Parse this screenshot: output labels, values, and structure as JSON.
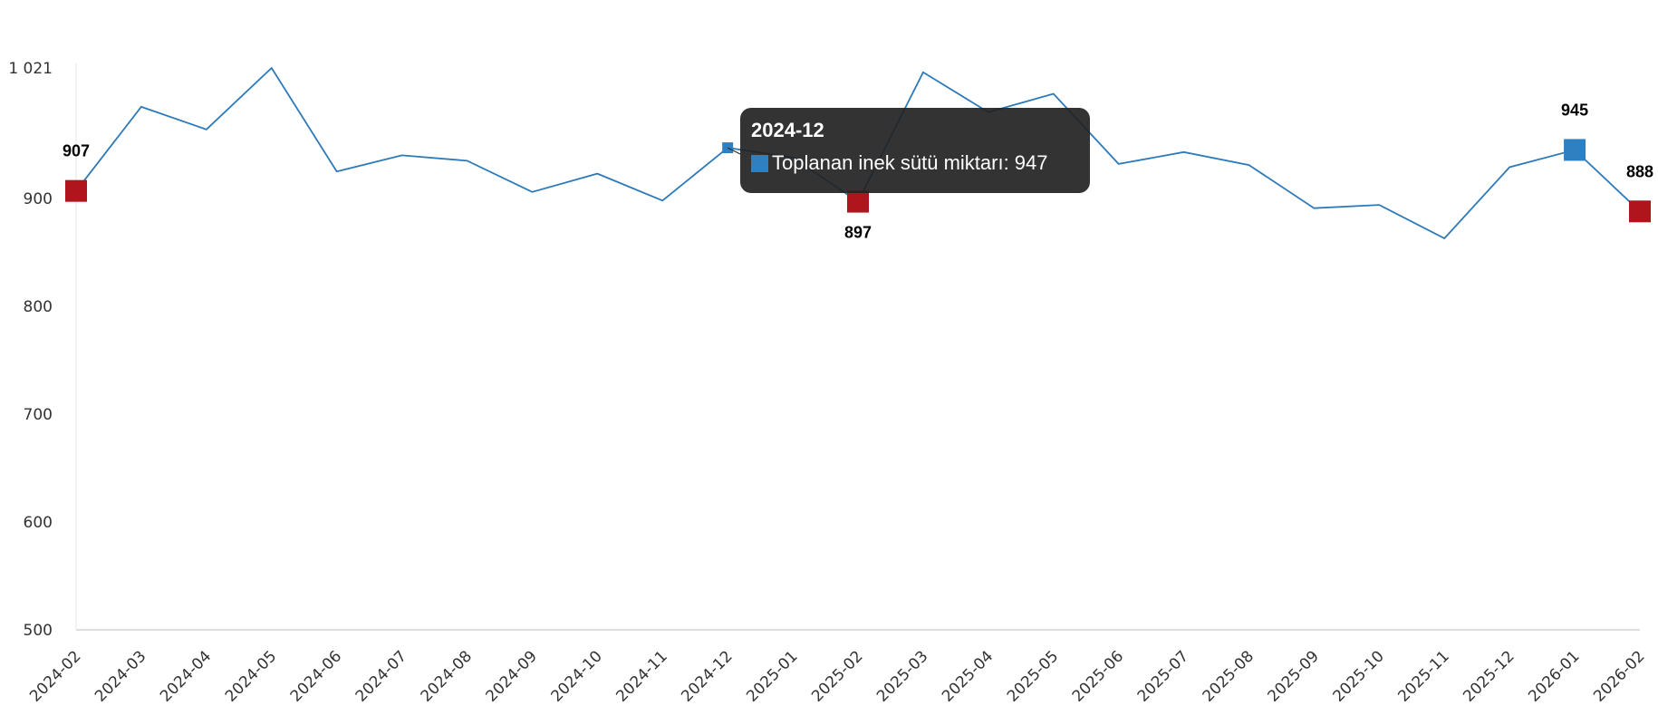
{
  "chart_data": {
    "type": "line",
    "title": "",
    "xlabel": "",
    "ylabel": "",
    "ylim": [
      500,
      1021
    ],
    "y_ticks": [
      "500",
      "600",
      "700",
      "800",
      "900",
      "1 021"
    ],
    "y_tick_values": [
      500,
      600,
      700,
      800,
      900,
      1021
    ],
    "categories": [
      "2024-02",
      "2024-03",
      "2024-04",
      "2024-05",
      "2024-06",
      "2024-07",
      "2024-08",
      "2024-09",
      "2024-10",
      "2024-11",
      "2024-12",
      "2025-01",
      "2025-02",
      "2025-03",
      "2025-04",
      "2025-05",
      "2025-06",
      "2025-07",
      "2025-08",
      "2025-09",
      "2025-10",
      "2025-11",
      "2025-12",
      "2026-01",
      "2026-02"
    ],
    "series": [
      {
        "name": "Toplanan inek sütü miktarı",
        "color": "#2e7ab8",
        "values": [
          907,
          985,
          964,
          1021,
          925,
          940,
          935,
          906,
          923,
          898,
          947,
          938,
          897,
          1017,
          980,
          997,
          932,
          943,
          931,
          891,
          894,
          863,
          929,
          945,
          888
        ]
      }
    ],
    "highlighted_points": [
      {
        "category": "2024-02",
        "label": "907",
        "color": "#b0141c"
      },
      {
        "category": "2025-02",
        "label": "897",
        "color": "#b0141c"
      },
      {
        "category": "2026-01",
        "label": "945",
        "color": "#2e80c1"
      },
      {
        "category": "2026-02",
        "label": "888",
        "color": "#b0141c"
      }
    ],
    "grid": false,
    "legend": "none",
    "tooltip": {
      "title": "2024-12",
      "series_label": "Toplanan inek sütü miktarı: 947",
      "category": "2024-12"
    }
  }
}
